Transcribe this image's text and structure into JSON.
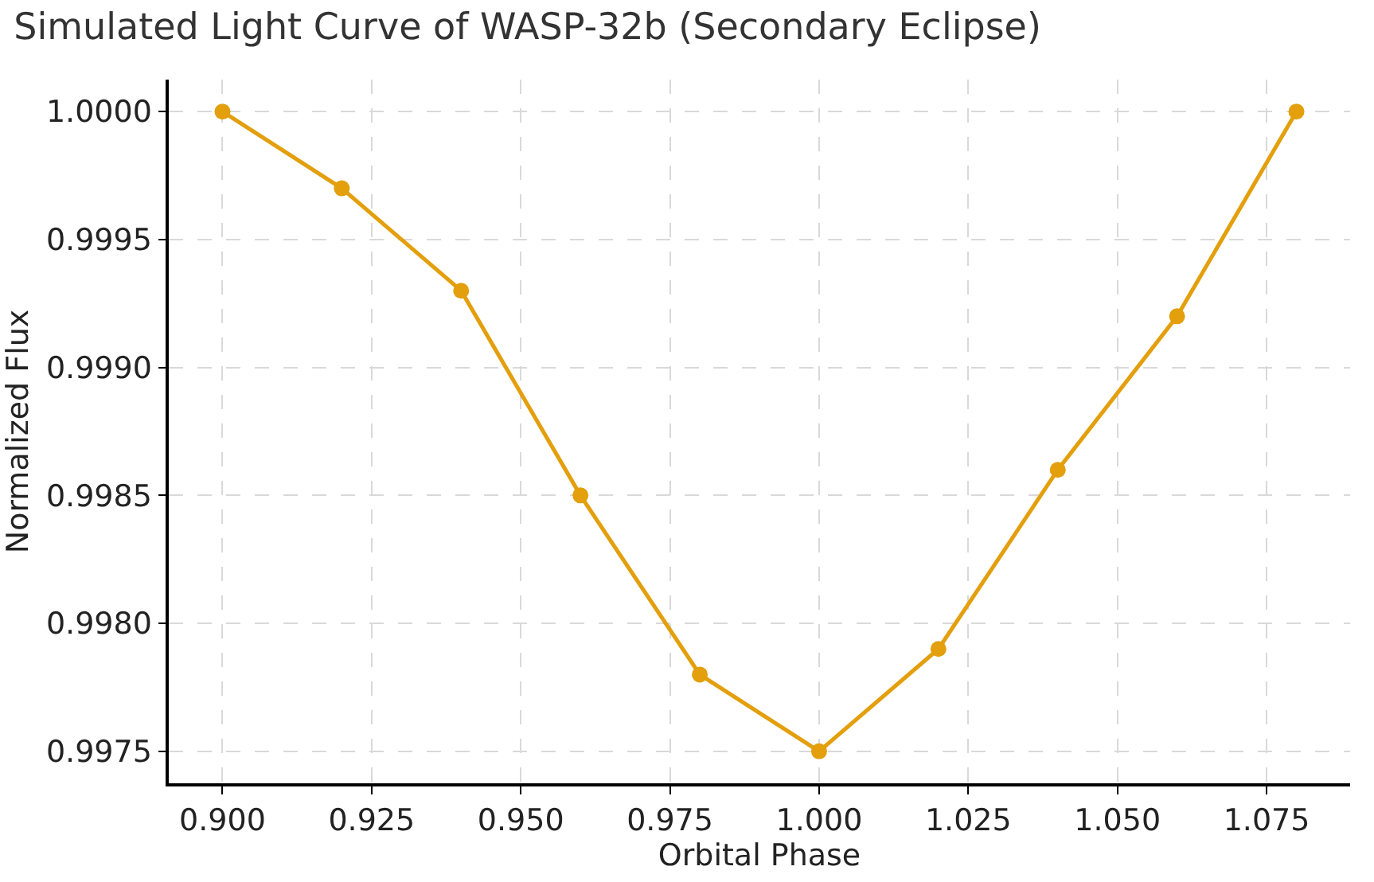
{
  "chart_data": {
    "type": "line",
    "title": "Simulated Light Curve of WASP-32b (Secondary Eclipse)",
    "xlabel": "Orbital Phase",
    "ylabel": "Normalized Flux",
    "x": [
      0.9,
      0.92,
      0.94,
      0.96,
      0.98,
      1.0,
      1.02,
      1.04,
      1.06,
      1.08
    ],
    "series": [
      {
        "color": "#e39f0c",
        "values": [
          1.0,
          0.9997,
          0.9993,
          0.9985,
          0.9978,
          0.9975,
          0.9979,
          0.9986,
          0.9992,
          1.0
        ]
      }
    ],
    "xlim": [
      0.891,
      1.089
    ],
    "ylim": [
      0.997375,
      1.000125
    ],
    "xticks": [
      {
        "value": 0.9,
        "label": "0.900"
      },
      {
        "value": 0.925,
        "label": "0.925"
      },
      {
        "value": 0.95,
        "label": "0.950"
      },
      {
        "value": 0.975,
        "label": "0.975"
      },
      {
        "value": 1.0,
        "label": "1.000"
      },
      {
        "value": 1.025,
        "label": "1.025"
      },
      {
        "value": 1.05,
        "label": "1.050"
      },
      {
        "value": 1.075,
        "label": "1.075"
      }
    ],
    "yticks": [
      {
        "value": 0.9975,
        "label": "0.9975"
      },
      {
        "value": 0.998,
        "label": "0.9980"
      },
      {
        "value": 0.9985,
        "label": "0.9985"
      },
      {
        "value": 0.999,
        "label": "0.9990"
      },
      {
        "value": 0.9995,
        "label": "0.9995"
      },
      {
        "value": 1.0,
        "label": "1.0000"
      }
    ],
    "grid": true,
    "marker": "circle",
    "line_style": "solid",
    "legend": false
  }
}
